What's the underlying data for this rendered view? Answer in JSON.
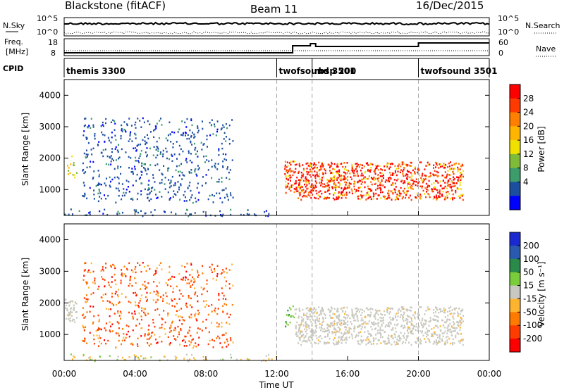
{
  "header": {
    "station": "Blackstone (fitACF)",
    "beam": "Beam 11",
    "date": "16/Dec/2015"
  },
  "top_panels": {
    "nsky_label": "N.Sky",
    "nsky_ticks": [
      "10^5",
      "10^0"
    ],
    "nsky_right_ticks": [
      "10^5",
      "10^0"
    ],
    "nsearch_label": "N.Search",
    "freq_label_1": "Freq.",
    "freq_label_2": "[MHz]",
    "freq_ticks": [
      "18",
      "8"
    ],
    "nave_ticks": [
      "60",
      "0"
    ],
    "nave_label": "Nave",
    "cpid_label": "CPID",
    "cpid_segments": [
      {
        "name": "themis 3300",
        "start_hr": 0
      },
      {
        "name": "twofsound 3501",
        "start_hr": 12
      },
      {
        "name": "rbsp 200",
        "start_hr": 14
      },
      {
        "name": "twofsound 3501",
        "start_hr": 20
      }
    ]
  },
  "x_axis": {
    "label": "Time UT",
    "ticks": [
      "00:00",
      "04:00",
      "08:00",
      "12:00",
      "16:00",
      "20:00",
      "00:00"
    ]
  },
  "power_colorbar": {
    "label": "Power [dB]",
    "ticks": [
      "28",
      "24",
      "20",
      "16",
      "12",
      "8",
      "4"
    ],
    "colors": [
      "#ff0000",
      "#ff3a00",
      "#ff8000",
      "#ffb400",
      "#f0e000",
      "#7fba38",
      "#3c9c6c",
      "#1c4ea0",
      "#0000ff"
    ]
  },
  "velocity_colorbar": {
    "label": "Velocity [m s⁻¹]",
    "ticks": [
      "200",
      "100",
      "50",
      "15",
      "-15",
      "-50",
      "-100",
      "-200"
    ],
    "colors": [
      "#1a2ad0",
      "#2a5ab0",
      "#2a8a4a",
      "#7acc3a",
      "#c8c8c0",
      "#ffb430",
      "#ff7a00",
      "#ff3c00",
      "#ff0000"
    ]
  },
  "chart_data": [
    {
      "type": "heatmap",
      "title": "",
      "xlabel": "Time UT",
      "ylabel": "Slant Range [km]",
      "xlim": [
        0,
        24
      ],
      "ylim": [
        180,
        4500
      ],
      "yticks": [
        1000,
        2000,
        3000,
        4000
      ],
      "quantity": "Power [dB]",
      "vertical_markers_hr": [
        12,
        14,
        20
      ],
      "echo_regions": [
        {
          "t": [
            0.0,
            0.7
          ],
          "range": [
            1400,
            2200
          ],
          "level": "mid-high"
        },
        {
          "t": [
            1.0,
            9.5
          ],
          "range": [
            600,
            3300
          ],
          "level": "low"
        },
        {
          "t": [
            0.0,
            12.0
          ],
          "range": [
            180,
            400
          ],
          "level": "low"
        },
        {
          "t": [
            12.4,
            13.0
          ],
          "range": [
            900,
            2000
          ],
          "level": "high"
        },
        {
          "t": [
            13.0,
            22.5
          ],
          "range": [
            700,
            1900
          ],
          "level": "high"
        }
      ]
    },
    {
      "type": "heatmap",
      "title": "",
      "xlabel": "Time UT",
      "ylabel": "Slant Range [km]",
      "xlim": [
        0,
        24
      ],
      "ylim": [
        180,
        4500
      ],
      "yticks": [
        1000,
        2000,
        3000,
        4000
      ],
      "quantity": "Velocity [m s-1]",
      "vertical_markers_hr": [
        12,
        14,
        20
      ],
      "echo_regions": [
        {
          "t": [
            0.0,
            0.7
          ],
          "range": [
            1400,
            2200
          ],
          "velocity": "-15 to 15"
        },
        {
          "t": [
            1.0,
            9.5
          ],
          "range": [
            600,
            3300
          ],
          "velocity": "-200 to -50"
        },
        {
          "t": [
            0.0,
            12.0
          ],
          "range": [
            180,
            400
          ],
          "velocity": "-50 to 15"
        },
        {
          "t": [
            12.4,
            13.0
          ],
          "range": [
            900,
            2000
          ],
          "velocity": "15 to 50"
        },
        {
          "t": [
            13.0,
            22.5
          ],
          "range": [
            700,
            1900
          ],
          "velocity": "-15 to 15"
        }
      ]
    }
  ]
}
